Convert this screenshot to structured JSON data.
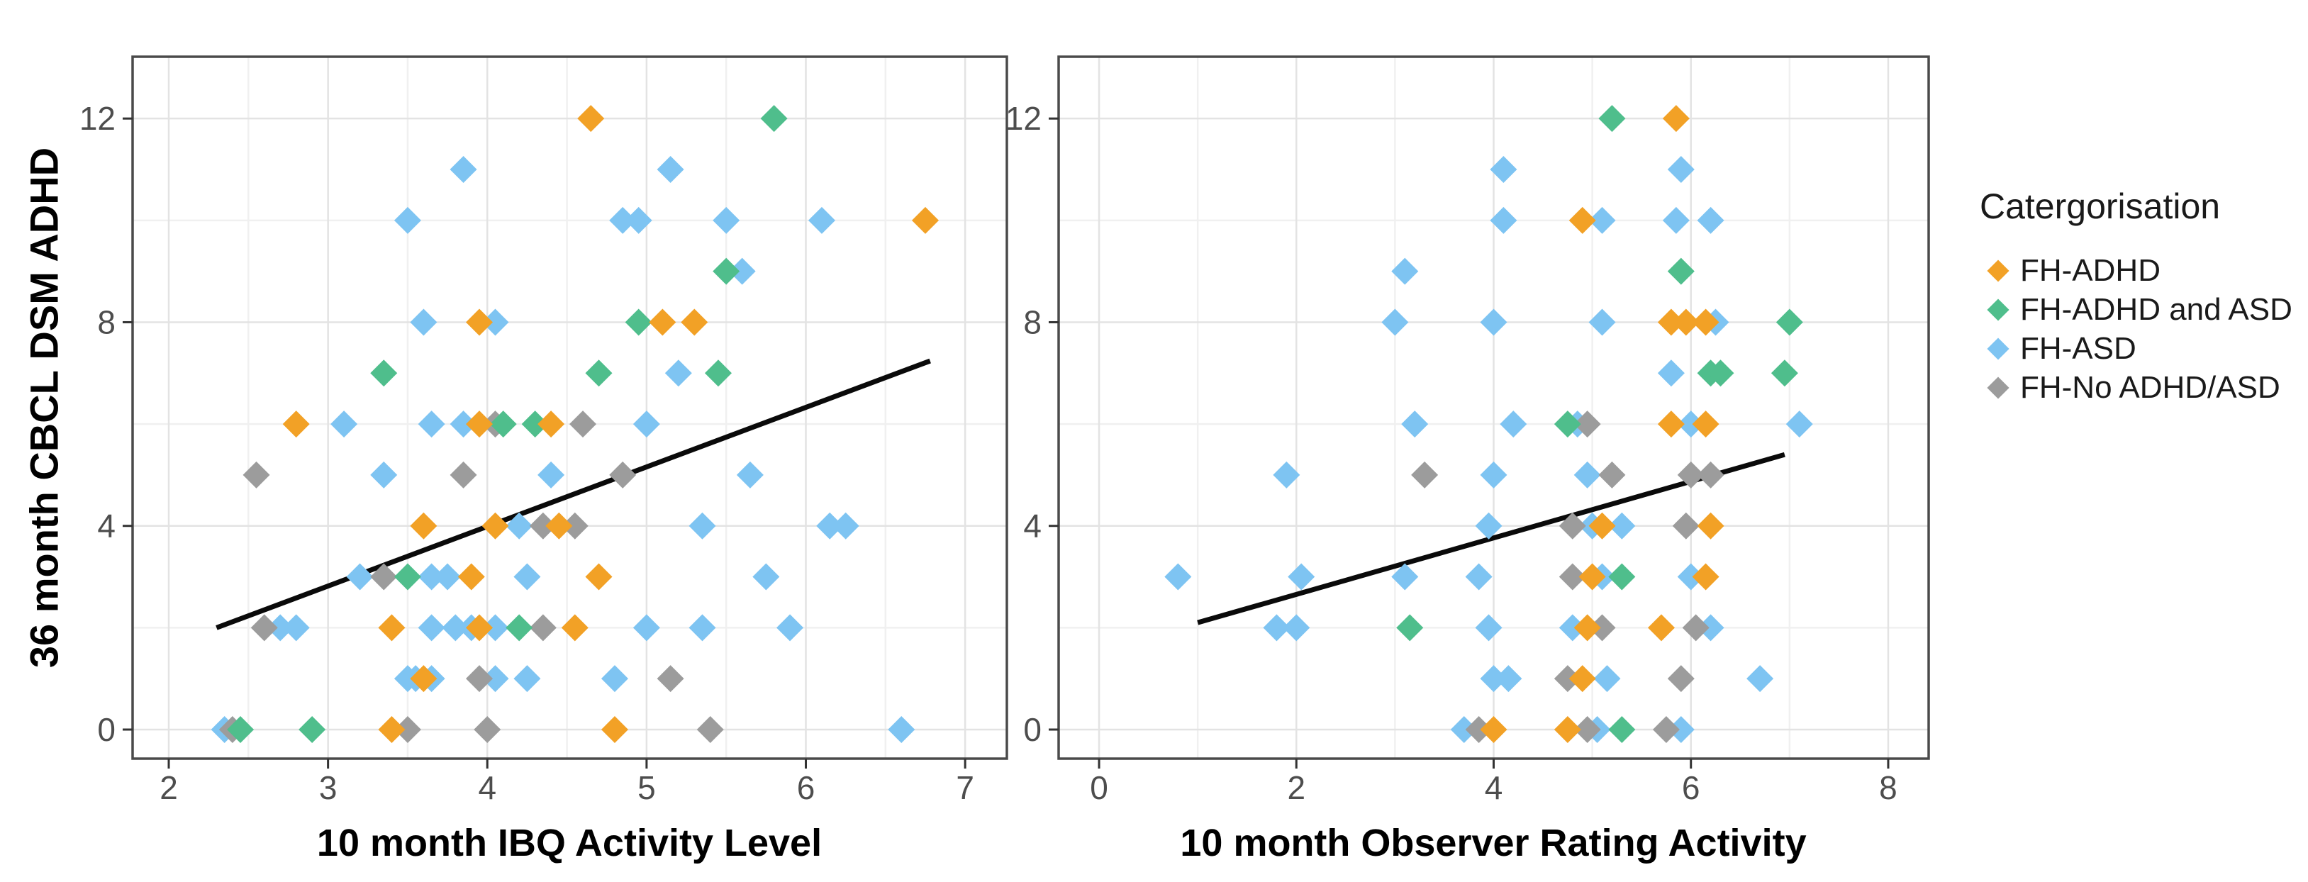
{
  "figure": {
    "y_axis_title": "36 month CBCL DSM ADHD",
    "x_axis_title_left": "10 month IBQ Activity Level",
    "x_axis_title_right": "10 month Observer Rating Activity"
  },
  "colors": {
    "orange": "#F2A126",
    "green": "#4FBE8C",
    "blue": "#7EC4F2",
    "gray": "#9C9C9C",
    "trend_line": "#0a0a0a",
    "panel_border": "#4a4a4a",
    "grid_major": "#e3e3e3",
    "grid_minor": "#f0f0f0",
    "tick_label": "#4d4d4d",
    "tick_mark": "#333333"
  },
  "legend": {
    "title": "Catergorisation",
    "items": [
      {
        "label": "FH-ADHD",
        "color": "orange"
      },
      {
        "label": "FH-ADHD and ASD",
        "color": "green"
      },
      {
        "label": "FH-ASD",
        "color": "blue"
      },
      {
        "label": "FH-No ADHD/ASD",
        "color": "gray"
      }
    ]
  },
  "chart_data": [
    {
      "type": "scatter",
      "xlabel": "10 month IBQ Activity Level",
      "ylabel": "36 month CBCL DSM ADHD",
      "xlim": [
        1.773,
        7.262
      ],
      "ylim": [
        -0.571,
        13.214
      ],
      "xticks": [
        2,
        3,
        4,
        5,
        6,
        7
      ],
      "yticks": [
        0,
        4,
        8,
        12
      ],
      "x_minor": [
        2.5,
        3.5,
        4.5,
        5.5,
        6.5
      ],
      "y_minor": [
        2,
        6,
        10
      ],
      "grid": true,
      "trend": {
        "x1": 2.3,
        "y1": 2.0,
        "x2": 6.78,
        "y2": 7.24
      },
      "series": [
        {
          "name": "FH-ASD",
          "color": "blue",
          "points": [
            [
              3.85,
              11
            ],
            [
              5.15,
              11
            ],
            [
              3.5,
              10
            ],
            [
              4.85,
              10
            ],
            [
              4.95,
              10
            ],
            [
              5.5,
              10
            ],
            [
              6.1,
              10
            ],
            [
              5.6,
              9
            ],
            [
              3.6,
              8
            ],
            [
              4.05,
              8
            ],
            [
              5.2,
              7
            ],
            [
              3.1,
              6
            ],
            [
              3.65,
              6
            ],
            [
              3.85,
              6
            ],
            [
              5.0,
              6
            ],
            [
              3.35,
              5
            ],
            [
              4.4,
              5
            ],
            [
              5.65,
              5
            ],
            [
              4.2,
              4
            ],
            [
              5.35,
              4
            ],
            [
              6.15,
              4
            ],
            [
              6.25,
              4
            ],
            [
              3.2,
              3
            ],
            [
              3.65,
              3
            ],
            [
              3.75,
              3
            ],
            [
              4.25,
              3
            ],
            [
              5.75,
              3
            ],
            [
              2.7,
              2
            ],
            [
              2.8,
              2
            ],
            [
              3.65,
              2
            ],
            [
              3.8,
              2
            ],
            [
              3.9,
              2
            ],
            [
              4.05,
              2
            ],
            [
              5.0,
              2
            ],
            [
              5.35,
              2
            ],
            [
              5.9,
              2
            ],
            [
              3.5,
              1
            ],
            [
              3.55,
              1
            ],
            [
              3.65,
              1
            ],
            [
              4.05,
              1
            ],
            [
              4.25,
              1
            ],
            [
              4.8,
              1
            ],
            [
              2.35,
              0
            ],
            [
              6.6,
              0
            ]
          ]
        },
        {
          "name": "FH-No ADHD/ASD",
          "color": "gray",
          "points": [
            [
              4.05,
              6
            ],
            [
              4.6,
              6
            ],
            [
              2.55,
              5
            ],
            [
              3.85,
              5
            ],
            [
              4.85,
              5
            ],
            [
              4.35,
              4
            ],
            [
              4.55,
              4
            ],
            [
              3.35,
              3
            ],
            [
              2.6,
              2
            ],
            [
              4.35,
              2
            ],
            [
              3.95,
              1
            ],
            [
              5.15,
              1
            ],
            [
              2.4,
              0
            ],
            [
              3.5,
              0
            ],
            [
              4.0,
              0
            ],
            [
              5.4,
              0
            ]
          ]
        },
        {
          "name": "FH-ADHD and ASD",
          "color": "green",
          "points": [
            [
              5.8,
              12
            ],
            [
              5.5,
              9
            ],
            [
              4.95,
              8
            ],
            [
              3.35,
              7
            ],
            [
              4.7,
              7
            ],
            [
              5.45,
              7
            ],
            [
              4.1,
              6
            ],
            [
              4.3,
              6
            ],
            [
              3.5,
              3
            ],
            [
              4.2,
              2
            ],
            [
              2.45,
              0
            ],
            [
              2.9,
              0
            ]
          ]
        },
        {
          "name": "FH-ADHD",
          "color": "orange",
          "points": [
            [
              4.65,
              12
            ],
            [
              6.75,
              10
            ],
            [
              3.95,
              8
            ],
            [
              5.1,
              8
            ],
            [
              5.3,
              8
            ],
            [
              2.8,
              6
            ],
            [
              3.95,
              6
            ],
            [
              4.4,
              6
            ],
            [
              3.6,
              4
            ],
            [
              4.05,
              4
            ],
            [
              4.45,
              4
            ],
            [
              3.9,
              3
            ],
            [
              4.7,
              3
            ],
            [
              3.4,
              2
            ],
            [
              3.95,
              2
            ],
            [
              4.55,
              2
            ],
            [
              3.6,
              1
            ],
            [
              3.4,
              0
            ],
            [
              4.8,
              0
            ]
          ]
        }
      ]
    },
    {
      "type": "scatter",
      "xlabel": "10 month Observer Rating Activity",
      "ylabel": "36 month CBCL DSM ADHD",
      "xlim": [
        -0.41,
        8.41
      ],
      "ylim": [
        -0.571,
        13.214
      ],
      "xticks": [
        0,
        2,
        4,
        6,
        8
      ],
      "yticks": [
        0,
        4,
        8,
        12
      ],
      "x_minor": [
        1,
        3,
        5,
        7
      ],
      "y_minor": [
        2,
        6,
        10
      ],
      "grid": true,
      "trend": {
        "x1": 1.0,
        "y1": 2.1,
        "x2": 6.95,
        "y2": 5.4
      },
      "series": [
        {
          "name": "FH-ASD",
          "color": "blue",
          "points": [
            [
              4.1,
              11
            ],
            [
              5.9,
              11
            ],
            [
              4.1,
              10
            ],
            [
              5.1,
              10
            ],
            [
              5.85,
              10
            ],
            [
              6.2,
              10
            ],
            [
              3.1,
              9
            ],
            [
              3.0,
              8
            ],
            [
              4.0,
              8
            ],
            [
              5.1,
              8
            ],
            [
              6.25,
              8
            ],
            [
              5.8,
              7
            ],
            [
              3.2,
              6
            ],
            [
              4.2,
              6
            ],
            [
              4.85,
              6
            ],
            [
              6.0,
              6
            ],
            [
              7.1,
              6
            ],
            [
              1.9,
              5
            ],
            [
              4.0,
              5
            ],
            [
              4.95,
              5
            ],
            [
              3.95,
              4
            ],
            [
              5.0,
              4
            ],
            [
              5.3,
              4
            ],
            [
              0.8,
              3
            ],
            [
              2.05,
              3
            ],
            [
              3.1,
              3
            ],
            [
              3.85,
              3
            ],
            [
              5.1,
              3
            ],
            [
              6.0,
              3
            ],
            [
              1.8,
              2
            ],
            [
              2.0,
              2
            ],
            [
              3.95,
              2
            ],
            [
              4.8,
              2
            ],
            [
              6.2,
              2
            ],
            [
              4.0,
              1
            ],
            [
              4.15,
              1
            ],
            [
              5.15,
              1
            ],
            [
              6.7,
              1
            ],
            [
              3.7,
              0
            ],
            [
              5.05,
              0
            ],
            [
              5.9,
              0
            ]
          ]
        },
        {
          "name": "FH-No ADHD/ASD",
          "color": "gray",
          "points": [
            [
              4.95,
              6
            ],
            [
              3.3,
              5
            ],
            [
              5.2,
              5
            ],
            [
              6.0,
              5
            ],
            [
              6.2,
              5
            ],
            [
              4.8,
              4
            ],
            [
              5.95,
              4
            ],
            [
              4.8,
              3
            ],
            [
              5.1,
              2
            ],
            [
              6.05,
              2
            ],
            [
              4.75,
              1
            ],
            [
              5.9,
              1
            ],
            [
              3.85,
              0
            ],
            [
              4.95,
              0
            ],
            [
              5.75,
              0
            ]
          ]
        },
        {
          "name": "FH-ADHD and ASD",
          "color": "green",
          "points": [
            [
              5.2,
              12
            ],
            [
              5.9,
              9
            ],
            [
              7.0,
              8
            ],
            [
              6.2,
              7
            ],
            [
              6.3,
              7
            ],
            [
              6.95,
              7
            ],
            [
              4.75,
              6
            ],
            [
              5.3,
              3
            ],
            [
              3.15,
              2
            ],
            [
              5.3,
              0
            ]
          ]
        },
        {
          "name": "FH-ADHD",
          "color": "orange",
          "points": [
            [
              5.85,
              12
            ],
            [
              4.9,
              10
            ],
            [
              5.8,
              8
            ],
            [
              5.95,
              8
            ],
            [
              6.15,
              8
            ],
            [
              5.8,
              6
            ],
            [
              6.15,
              6
            ],
            [
              5.1,
              4
            ],
            [
              6.2,
              4
            ],
            [
              5.0,
              3
            ],
            [
              6.15,
              3
            ],
            [
              4.95,
              2
            ],
            [
              5.7,
              2
            ],
            [
              4.9,
              1
            ],
            [
              4.0,
              0
            ],
            [
              4.75,
              0
            ]
          ]
        }
      ]
    }
  ]
}
